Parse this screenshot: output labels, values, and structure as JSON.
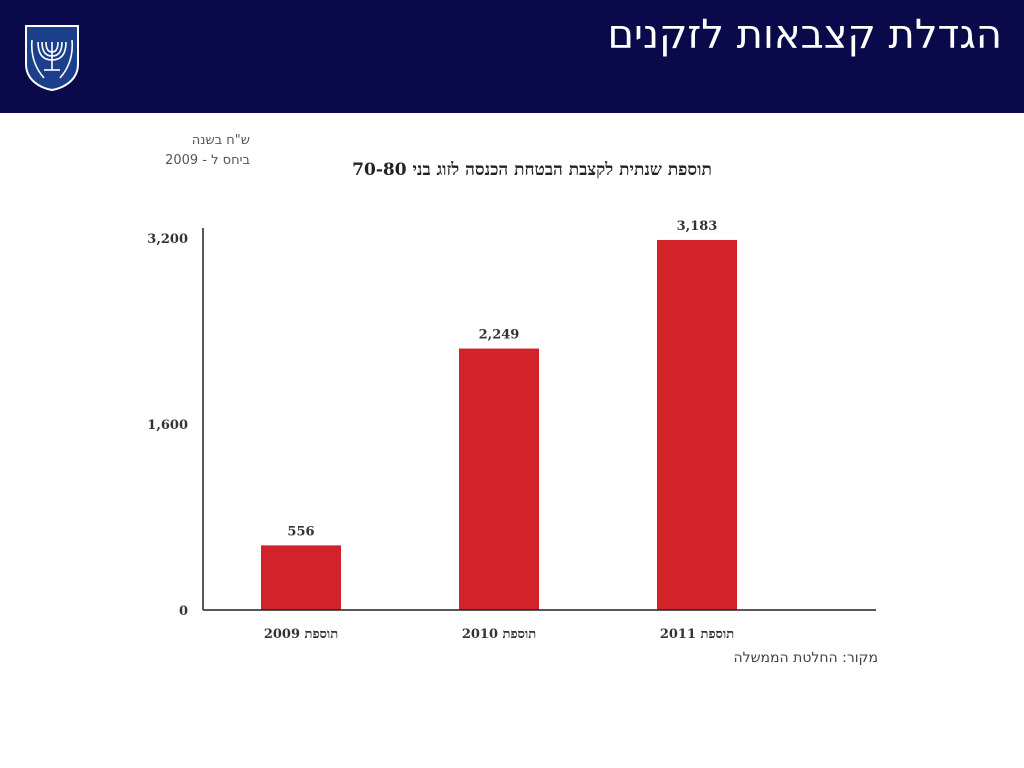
{
  "slide": {
    "title": "הגדלת קצבאות לזקנים"
  },
  "colors": {
    "header_bg": "#0a0a4a",
    "bar": "#d2232a",
    "axis": "#222222"
  },
  "icons": {
    "emblem": "state-emblem-icon"
  },
  "chart_data": {
    "type": "bar",
    "title": "תוספת שנתית לקצבת הבטחת הכנסה לזוג בני 70-80",
    "ylabel": "ש\"ח בשנה\nביחס ל - 2009",
    "source": "מקור: החלטת הממשלה",
    "categories": [
      "תוספת 2009",
      "תוספת 2010",
      "תוספת 2011"
    ],
    "values": [
      556,
      2249,
      3183
    ],
    "data_labels": [
      "556",
      "2,249",
      "3,183"
    ],
    "yticks": [
      0,
      1600,
      3200
    ],
    "ytick_labels": [
      "0",
      "1,600",
      "3,200"
    ],
    "ylim": [
      0,
      3200
    ],
    "grid": false,
    "legend": "none"
  }
}
